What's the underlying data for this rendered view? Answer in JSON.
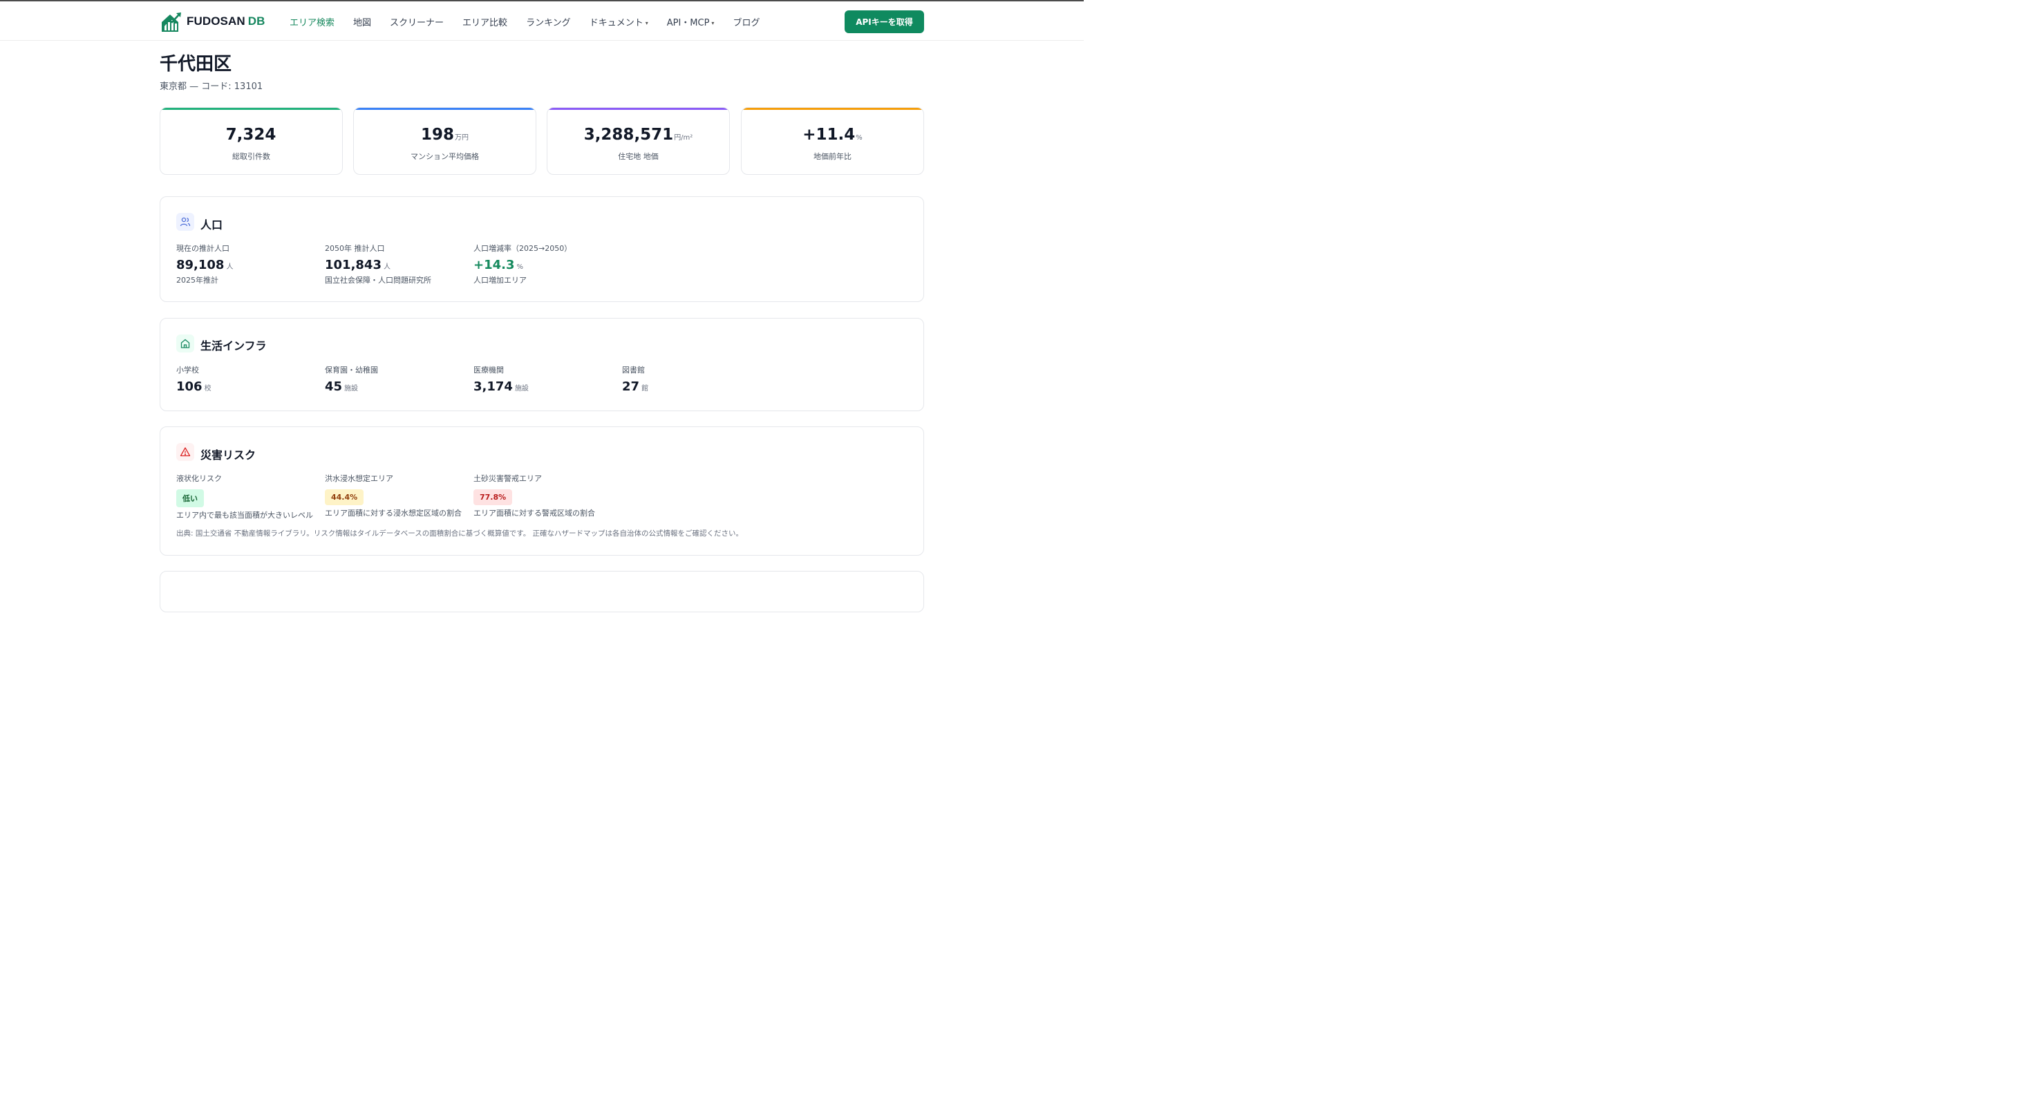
{
  "brand": {
    "name": "FUDOSAN",
    "suffix": "DB",
    "color": "#16875f"
  },
  "nav": [
    {
      "label": "エリア検索",
      "active": true,
      "dropdown": false
    },
    {
      "label": "地図",
      "active": false,
      "dropdown": false
    },
    {
      "label": "スクリーナー",
      "active": false,
      "dropdown": false
    },
    {
      "label": "エリア比較",
      "active": false,
      "dropdown": false
    },
    {
      "label": "ランキング",
      "active": false,
      "dropdown": false
    },
    {
      "label": "ドキュメント",
      "active": false,
      "dropdown": true
    },
    {
      "label": "API・MCP",
      "active": false,
      "dropdown": true
    },
    {
      "label": "ブログ",
      "active": false,
      "dropdown": false
    }
  ],
  "cta": {
    "label": "APIキーを取得",
    "color": "#0f8a5f"
  },
  "page": {
    "title": "千代田区",
    "subtitle": "東京都 — コード: 13101"
  },
  "stats": [
    {
      "value": "7,324",
      "unit": "",
      "label": "総取引件数",
      "color": "#22b27c"
    },
    {
      "value": "198",
      "unit": "万円",
      "label": "マンション平均価格",
      "color": "#3b82f6"
    },
    {
      "value": "3,288,571",
      "unit": "円/m²",
      "label": "住宅地 地価",
      "color": "#8b5cf6"
    },
    {
      "value": "+11.4",
      "unit": "%",
      "label": "地価前年比",
      "color": "#f59e0b"
    }
  ],
  "population": {
    "title": "人口",
    "icon": "users-icon",
    "metrics": [
      {
        "label": "現在の推計人口",
        "value": "89,108",
        "unit": "人",
        "note": "2025年推計"
      },
      {
        "label": "2050年 推計人口",
        "value": "101,843",
        "unit": "人",
        "note": "国立社会保障・人口問題研究所"
      },
      {
        "label": "人口増減率（2025→2050）",
        "value": "+14.3",
        "unit": "%",
        "note": "人口増加エリア"
      }
    ]
  },
  "infra": {
    "title": "生活インフラ",
    "icon": "home-icon",
    "metrics": [
      {
        "label": "小学校",
        "value": "106",
        "unit": "校"
      },
      {
        "label": "保育園・幼稚園",
        "value": "45",
        "unit": "施設"
      },
      {
        "label": "医療機関",
        "value": "3,174",
        "unit": "施設"
      },
      {
        "label": "図書館",
        "value": "27",
        "unit": "館"
      }
    ]
  },
  "risk": {
    "title": "災害リスク",
    "icon": "warning-icon",
    "metrics": [
      {
        "label": "液状化リスク",
        "badge": "低い",
        "level": "low",
        "note": "エリア内で最も該当面積が大きいレベル"
      },
      {
        "label": "洪水浸水想定エリア",
        "badge": "44.4%",
        "level": "mid",
        "note": "エリア面積に対する浸水想定区域の割合"
      },
      {
        "label": "土砂災害警戒エリア",
        "badge": "77.8%",
        "level": "high",
        "note": "エリア面積に対する警戒区域の割合"
      }
    ],
    "source": "出典: 国土交通省 不動産情報ライブラリ。リスク情報はタイルデータベースの面積割合に基づく概算値です。 正確なハザードマップは各自治体の公式情報をご確認ください。"
  }
}
